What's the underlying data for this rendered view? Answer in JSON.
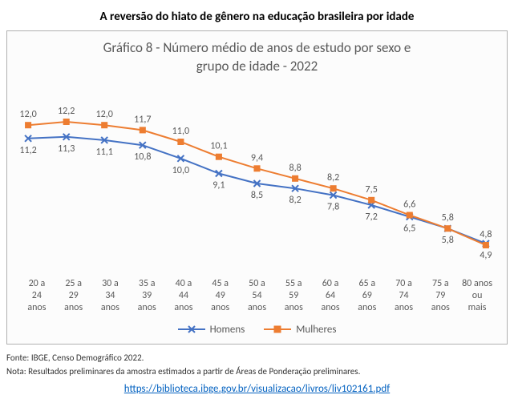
{
  "page_title": "A reversão do hiato de gênero na educação brasileira por idade",
  "chart": {
    "type": "line",
    "title_line1": "Gráfico 8 - Número médio de anos de estudo por sexo e",
    "title_line2": "grupo de idade - 2022",
    "title_fontsize": 17,
    "title_color": "#595959",
    "background_color": "#fcfcfc",
    "border_color": "#b0b0b0",
    "categories": [
      "20 a 24 anos",
      "25 a 29 anos",
      "30 a 34 anos",
      "35 a 39 anos",
      "40 a 44 anos",
      "45 a 49 anos",
      "50 a 54 anos",
      "55 a 59 anos",
      "60 a 64 anos",
      "65 a 69 anos",
      "70 a 74 anos",
      "75 a 79 anos",
      "80 anos ou mais"
    ],
    "series": [
      {
        "name": "Homens",
        "color": "#4472c4",
        "marker": "x",
        "line_width": 2,
        "values": [
          11.2,
          11.3,
          11.1,
          10.8,
          10.0,
          9.1,
          8.5,
          8.2,
          7.8,
          7.2,
          6.5,
          5.8,
          4.9
        ],
        "labels": [
          "11,2",
          "11,3",
          "11,1",
          "10,8",
          "10,0",
          "9,1",
          "8,5",
          "8,2",
          "7,8",
          "7,2",
          "6,5",
          "5,8",
          "4,9"
        ]
      },
      {
        "name": "Mulheres",
        "color": "#ed7d31",
        "marker": "square",
        "line_width": 2,
        "values": [
          12.0,
          12.2,
          12.0,
          11.7,
          11.0,
          10.1,
          9.4,
          8.8,
          8.2,
          7.5,
          6.6,
          5.8,
          4.8
        ],
        "labels": [
          "12,0",
          "12,2",
          "12,0",
          "11,7",
          "11,0",
          "10,1",
          "9,4",
          "8,8",
          "8,2",
          "7,5",
          "6,6",
          "5,8",
          "4,8"
        ]
      }
    ],
    "ylim": [
      3.5,
      13.5
    ],
    "label_fontsize": 12,
    "label_color": "#595959",
    "xlabel_fontsize": 12,
    "legend": {
      "position": "bottom",
      "items": [
        "Homens",
        "Mulheres"
      ]
    }
  },
  "footnote": {
    "source": "Fonte: IBGE, Censo Demográfico 2022.",
    "note": "Nota: Resultados preliminares da amostra estimados a partir de Áreas de Ponderação preliminares.",
    "link_text": "https://biblioteca.ibge.gov.br/visualizacao/livros/liv102161.pdf",
    "link_href": "https://biblioteca.ibge.gov.br/visualizacao/livros/liv102161.pdf"
  }
}
